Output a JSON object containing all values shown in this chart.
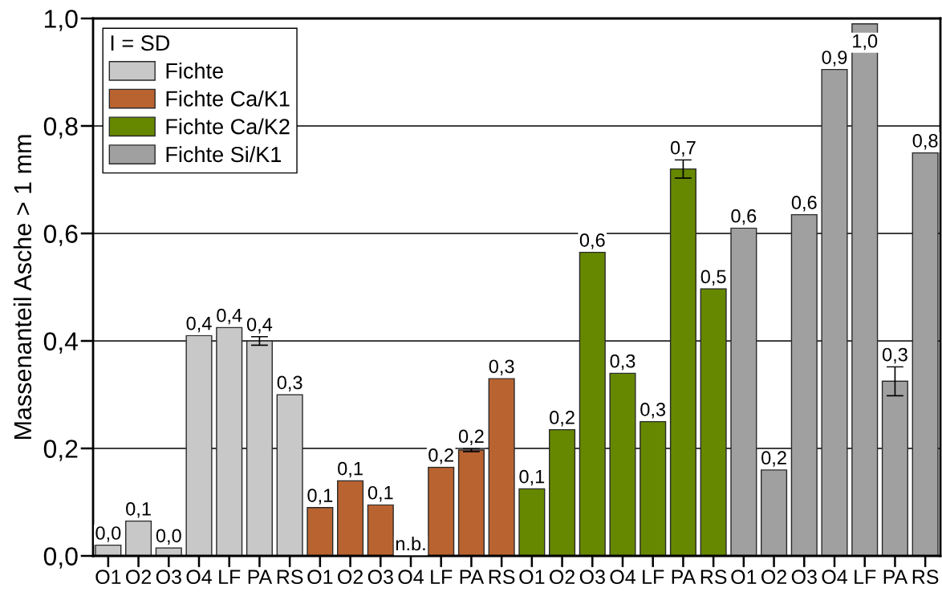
{
  "chart_data": {
    "type": "bar",
    "categories": [
      "O1",
      "O2",
      "O3",
      "O4",
      "LF",
      "PA",
      "RS",
      "O1",
      "O2",
      "O3",
      "O4",
      "LF",
      "PA",
      "RS",
      "O1",
      "O2",
      "O3",
      "O4",
      "LF",
      "PA",
      "RS",
      "O1",
      "O2",
      "O3",
      "O4",
      "LF",
      "PA",
      "RS"
    ],
    "ylabel": "Massenanteil Asche > 1 mm",
    "legend_title": "I = SD",
    "legend": "top left",
    "grid": "y",
    "ylim": [
      0,
      1
    ],
    "yticks": [
      {
        "value": 0,
        "label": "0,0"
      },
      {
        "value": 0.2,
        "label": "0,2"
      },
      {
        "value": 0.4,
        "label": "0,4"
      },
      {
        "value": 0.6,
        "label": "0,6"
      },
      {
        "value": 0.8,
        "label": "0,8"
      },
      {
        "value": 1,
        "label": "1,0"
      }
    ],
    "series": [
      {
        "name": "Fichte",
        "color": "#c8c8c8",
        "values": [
          0.02,
          0.065,
          0.015,
          0.41,
          0.425,
          0.4,
          0.3,
          null,
          null,
          null,
          null,
          null,
          null,
          null,
          null,
          null,
          null,
          null,
          null,
          null,
          null,
          null,
          null,
          null,
          null,
          null,
          null,
          null
        ],
        "errors": [
          null,
          null,
          null,
          null,
          null,
          0.008,
          null,
          null,
          null,
          null,
          null,
          null,
          null,
          null,
          null,
          null,
          null,
          null,
          null,
          null,
          null,
          null,
          null,
          null,
          null,
          null,
          null,
          null
        ],
        "value_labels": [
          "0,0",
          "0,1",
          "0,0",
          "0,4",
          "0,4",
          "0,4",
          "0,3",
          null,
          null,
          null,
          null,
          null,
          null,
          null,
          null,
          null,
          null,
          null,
          null,
          null,
          null,
          null,
          null,
          null,
          null,
          null,
          null,
          null
        ]
      },
      {
        "name": "Fichte Ca/K1",
        "color": "#b96330",
        "values": [
          null,
          null,
          null,
          null,
          null,
          null,
          null,
          0.09,
          0.14,
          0.095,
          null,
          0.165,
          0.197,
          0.33,
          null,
          null,
          null,
          null,
          null,
          null,
          null,
          null,
          null,
          null,
          null,
          null,
          null,
          null
        ],
        "errors": [
          null,
          null,
          null,
          null,
          null,
          null,
          null,
          null,
          null,
          null,
          null,
          null,
          0.003,
          null,
          null,
          null,
          null,
          null,
          null,
          null,
          null,
          null,
          null,
          null,
          null,
          null,
          null,
          null
        ],
        "value_labels": [
          null,
          null,
          null,
          null,
          null,
          null,
          null,
          "0,1",
          "0,1",
          "0,1",
          "n.b.",
          "0,2",
          "0,2",
          "0,3",
          null,
          null,
          null,
          null,
          null,
          null,
          null,
          null,
          null,
          null,
          null,
          null,
          null,
          null
        ]
      },
      {
        "name": "Fichte Ca/K2",
        "color": "#668800",
        "values": [
          null,
          null,
          null,
          null,
          null,
          null,
          null,
          null,
          null,
          null,
          null,
          null,
          null,
          null,
          0.125,
          0.235,
          0.565,
          0.34,
          0.25,
          0.72,
          0.497,
          null,
          null,
          null,
          null,
          null,
          null,
          null
        ],
        "errors": [
          null,
          null,
          null,
          null,
          null,
          null,
          null,
          null,
          null,
          null,
          null,
          null,
          null,
          null,
          null,
          null,
          null,
          null,
          null,
          0.017,
          null,
          null,
          null,
          null,
          null,
          null,
          null,
          null
        ],
        "value_labels": [
          null,
          null,
          null,
          null,
          null,
          null,
          null,
          null,
          null,
          null,
          null,
          null,
          null,
          null,
          "0,1",
          "0,2",
          "0,6",
          "0,3",
          "0,3",
          "0,7",
          "0,5",
          null,
          null,
          null,
          null,
          null,
          null,
          null
        ]
      },
      {
        "name": "Fichte Si/K1",
        "color": "#a0a0a0",
        "values": [
          null,
          null,
          null,
          null,
          null,
          null,
          null,
          null,
          null,
          null,
          null,
          null,
          null,
          null,
          null,
          null,
          null,
          null,
          null,
          null,
          null,
          0.61,
          0.16,
          0.635,
          0.905,
          0.99,
          0.325,
          0.75
        ],
        "errors": [
          null,
          null,
          null,
          null,
          null,
          null,
          null,
          null,
          null,
          null,
          null,
          null,
          null,
          null,
          null,
          null,
          null,
          null,
          null,
          null,
          null,
          null,
          null,
          null,
          null,
          null,
          0.027,
          null
        ],
        "value_labels": [
          null,
          null,
          null,
          null,
          null,
          null,
          null,
          null,
          null,
          null,
          null,
          null,
          null,
          null,
          null,
          null,
          null,
          null,
          null,
          null,
          null,
          "0,6",
          "0,2",
          "0,6",
          "0,9",
          "1,0",
          "0,3",
          "0,8"
        ]
      }
    ]
  }
}
